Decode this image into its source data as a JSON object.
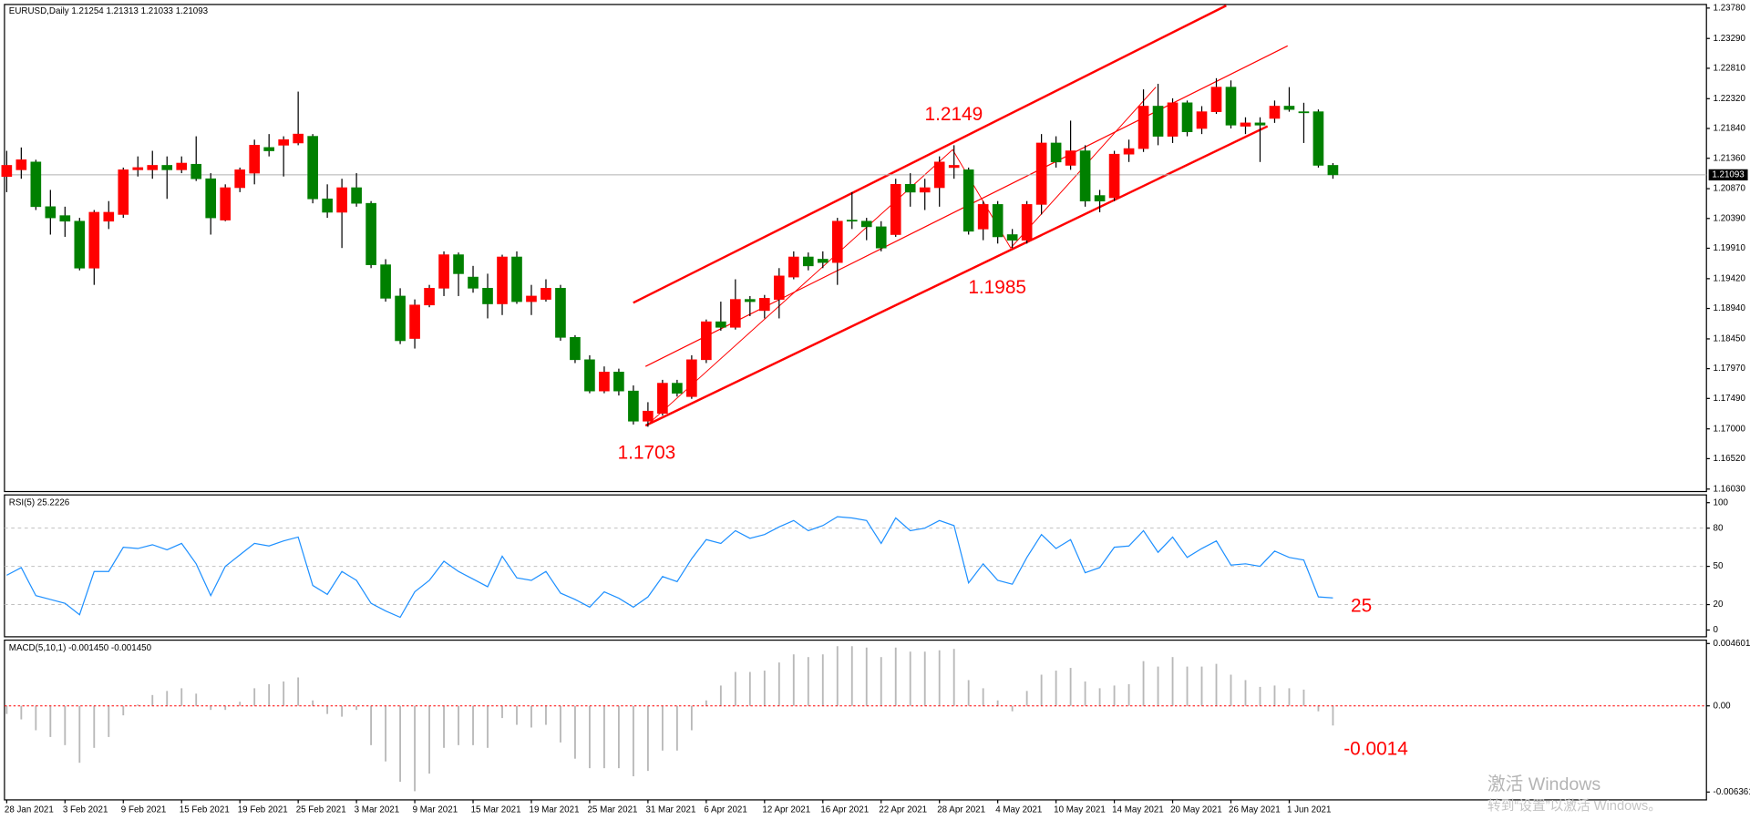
{
  "chart_data": [
    {
      "type": "candlestick",
      "title": "EURUSD,Daily  1.21254 1.21313 1.21033 1.21093",
      "categories": [
        "28 Jan 2021",
        null,
        null,
        null,
        "3 Feb 2021",
        null,
        null,
        null,
        "9 Feb 2021",
        null,
        null,
        null,
        "15 Feb 2021",
        null,
        null,
        null,
        "19 Feb 2021",
        null,
        null,
        null,
        "25 Feb 2021",
        null,
        null,
        null,
        "3 Mar 2021",
        null,
        null,
        null,
        "9 Mar 2021",
        null,
        null,
        null,
        "15 Mar 2021",
        null,
        null,
        null,
        "19 Mar 2021",
        null,
        null,
        null,
        "25 Mar 2021",
        null,
        null,
        null,
        "31 Mar 2021",
        null,
        null,
        null,
        "6 Apr 2021",
        null,
        null,
        null,
        "12 Apr 2021",
        null,
        null,
        null,
        "16 Apr 2021",
        null,
        null,
        null,
        "22 Apr 2021",
        null,
        null,
        null,
        "28 Apr 2021",
        null,
        null,
        null,
        "4 May 2021",
        null,
        null,
        null,
        "10 May 2021",
        null,
        null,
        null,
        "14 May 2021",
        null,
        null,
        null,
        "20 May 2021",
        null,
        null,
        null,
        "26 May 2021",
        null,
        null,
        null,
        "1 Jun 2021",
        null,
        null,
        null
      ],
      "open": [
        1.21066,
        1.21174,
        1.213,
        1.2058,
        1.20436,
        1.20346,
        1.1959,
        1.20346,
        1.20454,
        1.21174,
        1.21174,
        1.21246,
        1.21174,
        1.21264,
        1.2103,
        1.20364,
        1.20886,
        1.2112,
        1.21534,
        1.2157,
        1.21606,
        1.21714,
        1.20706,
        1.2049,
        1.20886,
        1.20634,
        1.19644,
        1.1914,
        1.18456,
        1.18996,
        1.19266,
        1.19806,
        1.19446,
        1.19266,
        1.19014,
        1.1977,
        1.1905,
        1.19086,
        1.19266,
        1.18474,
        1.18114,
        1.1761,
        1.17916,
        1.1761,
        1.17124,
        1.1725,
        1.17736,
        1.1752,
        1.18114,
        1.18726,
        1.18636,
        1.19086,
        1.18906,
        1.19086,
        1.19446,
        1.1977,
        1.19734,
        1.1968,
        1.20364,
        1.20346,
        1.20256,
        1.2013,
        1.2094,
        1.20814,
        1.20886,
        1.2121,
        1.21174,
        1.2022,
        1.20616,
        1.2013,
        1.2004,
        1.20616,
        1.21606,
        1.21246,
        1.2148,
        1.2076,
        1.20724,
        1.21426,
        1.21516,
        1.222,
        1.21714,
        1.22254,
        1.2184,
        1.2211,
        1.22506,
        1.21876,
        1.2193,
        1.22002,
        1.222,
        1.2211,
        1.2211,
        1.21246
      ],
      "high": [
        1.2148,
        1.21534,
        1.21336,
        1.2085,
        1.2058,
        1.204,
        1.20526,
        1.2067,
        1.2121,
        1.2139,
        1.2148,
        1.2139,
        1.2139,
        1.21714,
        1.2112,
        1.2094,
        1.2121,
        1.2166,
        1.2175,
        1.21714,
        1.22434,
        1.2175,
        1.2094,
        1.2103,
        1.2112,
        1.2067,
        1.19734,
        1.19266,
        1.19086,
        1.1932,
        1.1986,
        1.19842,
        1.19626,
        1.195,
        1.19806,
        1.1986,
        1.1932,
        1.1941,
        1.1932,
        1.1851,
        1.18186,
        1.18006,
        1.1797,
        1.177,
        1.1743,
        1.1779,
        1.1779,
        1.18186,
        1.18762,
        1.1905,
        1.1941,
        1.1914,
        1.19158,
        1.1959,
        1.1986,
        1.19842,
        1.1986,
        1.204,
        1.20814,
        1.204,
        1.20346,
        1.2103,
        1.2112,
        1.2103,
        1.2139,
        1.2157,
        1.2121,
        1.2067,
        1.2067,
        1.2022,
        1.2067,
        1.2175,
        1.21714,
        1.21966,
        1.2157,
        1.2085,
        1.2148,
        1.2166,
        1.2247,
        1.2256,
        1.22326,
        1.2229,
        1.222,
        1.2265,
        1.22614,
        1.2202,
        1.2202,
        1.2229,
        1.22506,
        1.22254,
        1.22146,
        1.21282
      ],
      "low": [
        1.20814,
        1.2103,
        1.20526,
        1.2013,
        1.20094,
        1.19554,
        1.1932,
        1.2022,
        1.204,
        1.21066,
        1.2103,
        1.20706,
        1.2112,
        1.20994,
        1.2013,
        1.20346,
        1.20814,
        1.2094,
        1.2139,
        1.21066,
        1.2157,
        1.20634,
        1.204,
        1.19914,
        1.2058,
        1.1959,
        1.1905,
        1.18366,
        1.18294,
        1.1896,
        1.1914,
        1.1914,
        1.19194,
        1.1878,
        1.18834,
        1.19014,
        1.18834,
        1.1905,
        1.1842,
        1.1806,
        1.17574,
        1.17574,
        1.17538,
        1.1707,
        1.17034,
        1.17214,
        1.1752,
        1.17484,
        1.1806,
        1.18582,
        1.186,
        1.18816,
        1.1878,
        1.1878,
        1.1941,
        1.19554,
        1.1959,
        1.1932,
        1.2022,
        1.2004,
        1.1986,
        1.20094,
        1.2058,
        1.20526,
        1.2058,
        1.2103,
        1.2013,
        1.2004,
        1.19986,
        1.19914,
        1.19986,
        1.20454,
        1.2121,
        1.21174,
        1.2058,
        1.2049,
        1.2067,
        1.213,
        1.21462,
        1.2157,
        1.21606,
        1.21714,
        1.2175,
        1.22074,
        1.2184,
        1.2175,
        1.213,
        1.2193,
        1.2211,
        1.21606,
        1.2121,
        1.2103
      ],
      "close": [
        1.21246,
        1.21336,
        1.2058,
        1.204,
        1.20346,
        1.1959,
        1.2049,
        1.2049,
        1.21174,
        1.2121,
        1.21246,
        1.21174,
        1.21282,
        1.2103,
        1.204,
        1.20886,
        1.21174,
        1.2157,
        1.2148,
        1.2166,
        1.2175,
        1.20706,
        1.2049,
        1.20886,
        1.20634,
        1.19644,
        1.19104,
        1.1842,
        1.18996,
        1.19266,
        1.19806,
        1.195,
        1.19266,
        1.19014,
        1.1977,
        1.1905,
        1.1914,
        1.19266,
        1.18474,
        1.18114,
        1.1761,
        1.17916,
        1.1761,
        1.17124,
        1.17286,
        1.17736,
        1.17574,
        1.18114,
        1.18726,
        1.18636,
        1.19086,
        1.1905,
        1.19104,
        1.19464,
        1.1977,
        1.19626,
        1.1968,
        1.20346,
        1.20346,
        1.20256,
        1.19914,
        1.2094,
        1.20814,
        1.20886,
        1.213,
        1.21246,
        1.20184,
        1.20616,
        1.20094,
        1.2004,
        1.20616,
        1.21606,
        1.213,
        1.2148,
        1.2067,
        1.2067,
        1.21426,
        1.21516,
        1.222,
        1.21714,
        1.22254,
        1.21786,
        1.2211,
        1.22506,
        1.21894,
        1.2193,
        1.21894,
        1.222,
        1.22146,
        1.22092,
        1.21246,
        1.21093
      ],
      "up_color": "#ff0000",
      "down_color": "#008000",
      "ylim": [
        1.1599,
        1.23838
      ],
      "yticks": [
        {
          "value": 1.2378,
          "label": "1.23780"
        },
        {
          "value": 1.2329,
          "label": "1.23290"
        },
        {
          "value": 1.2281,
          "label": "1.22810"
        },
        {
          "value": 1.2232,
          "label": "1.22320"
        },
        {
          "value": 1.2184,
          "label": "1.21840"
        },
        {
          "value": 1.2136,
          "label": "1.21360"
        },
        {
          "value": 1.2087,
          "label": "1.20870"
        },
        {
          "value": 1.2039,
          "label": "1.20390"
        },
        {
          "value": 1.1991,
          "label": "1.19910"
        },
        {
          "value": 1.1942,
          "label": "1.19420"
        },
        {
          "value": 1.1894,
          "label": "1.18940"
        },
        {
          "value": 1.1845,
          "label": "1.18450"
        },
        {
          "value": 1.1797,
          "label": "1.17970"
        },
        {
          "value": 1.1749,
          "label": "1.17490"
        },
        {
          "value": 1.17,
          "label": "1.17000"
        },
        {
          "value": 1.1652,
          "label": "1.16520"
        },
        {
          "value": 1.1603,
          "label": "1.16030"
        }
      ],
      "current_price": 1.21093,
      "annotations": [
        "1.2149",
        "1.1985",
        "1.1703"
      ]
    },
    {
      "type": "line",
      "title": "RSI(5) 25.2226",
      "values": [
        43,
        49,
        27,
        24,
        21,
        12,
        46,
        46,
        65,
        64,
        67,
        63,
        68,
        52,
        27,
        50,
        59,
        68,
        66,
        70,
        73,
        35,
        28,
        46,
        39,
        21,
        15,
        10,
        30,
        39,
        54,
        46,
        40,
        34,
        58,
        41,
        39,
        46,
        29,
        24,
        18,
        30,
        25,
        18,
        26,
        42,
        38,
        56,
        71,
        68,
        78,
        72,
        75,
        81,
        86,
        78,
        82,
        89,
        88,
        86,
        68,
        88,
        78,
        80,
        86,
        82,
        37,
        52,
        39,
        36,
        57,
        75,
        64,
        71,
        45,
        49,
        65,
        66,
        78,
        61,
        73,
        57,
        64,
        70,
        51,
        52,
        50,
        62,
        57,
        55,
        26,
        25.2226
      ],
      "color": "#1e90ff",
      "ylim": [
        -5.3,
        106.1
      ],
      "yticks": [
        100,
        80,
        50,
        20,
        0
      ],
      "levels": [
        80,
        50,
        20
      ],
      "annotations": [
        "25"
      ]
    },
    {
      "type": "bar",
      "title": "MACD(5,10,1) -0.001450 -0.001450",
      "values": [
        -0.0006,
        -0.001,
        -0.0018,
        -0.0023,
        -0.0029,
        -0.0042,
        -0.0031,
        -0.0023,
        -0.0007,
        0.0001,
        0.0008,
        0.0011,
        0.0013,
        0.0009,
        -0.0003,
        -0.0003,
        0.0003,
        0.0013,
        0.0016,
        0.0018,
        0.0021,
        0.0004,
        -0.0006,
        -0.0008,
        -0.0003,
        -0.0029,
        -0.0041,
        -0.0056,
        -0.0063,
        -0.005,
        -0.0031,
        -0.0029,
        -0.0029,
        -0.0031,
        -0.0009,
        -0.0014,
        -0.0016,
        -0.0014,
        -0.0027,
        -0.0039,
        -0.0046,
        -0.0046,
        -0.0046,
        -0.0052,
        -0.0048,
        -0.0033,
        -0.0033,
        -0.0018,
        0.0004,
        0.0015,
        0.0025,
        0.0025,
        0.0026,
        0.0032,
        0.0038,
        0.0036,
        0.0038,
        0.0044,
        0.0044,
        0.0043,
        0.0036,
        0.0043,
        0.004,
        0.004,
        0.0041,
        0.0042,
        0.0019,
        0.0013,
        0.0004,
        -0.0004,
        0.0011,
        0.0023,
        0.0026,
        0.0028,
        0.0018,
        0.0013,
        0.0015,
        0.0016,
        0.0033,
        0.0029,
        0.0036,
        0.0029,
        0.0029,
        0.0031,
        0.0023,
        0.0019,
        0.0014,
        0.0015,
        0.0013,
        0.0012,
        -0.0004,
        -0.00145
      ],
      "color": "#b8b8b8",
      "zero_line_color": "#ff0000",
      "ylim": [
        -0.00694,
        0.00485
      ],
      "yticks": [
        0.004601,
        {
          "value": 0,
          "label": "0.00"
        },
        -0.006361
      ],
      "annotations": [
        "-0.0014"
      ]
    }
  ],
  "watermark": {
    "title": "激活 Windows",
    "subtitle": "转到“设置”以激活 Windows。"
  }
}
